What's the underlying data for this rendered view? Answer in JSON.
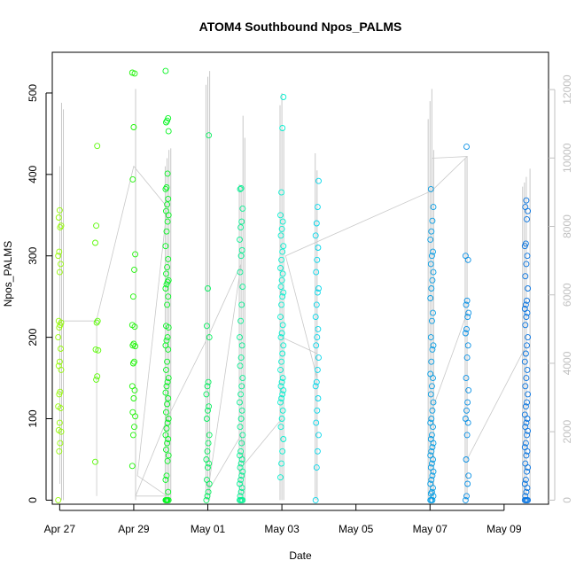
{
  "chart_data": {
    "type": "scatter",
    "title": "ATOM4 Southbound Npos_PALMS",
    "xlabel": "Date",
    "ylabel": "Npos_PALMS",
    "xlim": [
      -0.2,
      13.2
    ],
    "ylim": [
      -5,
      550
    ],
    "y_ticks": [
      "0",
      "100",
      "200",
      "300",
      "400",
      "500"
    ],
    "y_tick_values": [
      0,
      100,
      200,
      300,
      400,
      500
    ],
    "x_ticks": [
      "Apr 27",
      "Apr 29",
      "May 01",
      "May 03",
      "May 05",
      "May 07",
      "May 09"
    ],
    "x_tick_values": [
      0,
      2,
      4,
      6,
      8,
      10,
      12
    ],
    "secondary_axis": {
      "ylim": [
        -119,
        13090
      ],
      "ticks": [
        "0",
        "2000",
        "4000",
        "6000",
        "8000",
        "10000",
        "12000"
      ],
      "tick_values": [
        0,
        2000,
        4000,
        6000,
        8000,
        10000,
        12000
      ],
      "color": "#c0c0c0"
    },
    "series": [
      {
        "name": "Npos_PALMS",
        "marker": "open-circle",
        "color_scale": "time (green → cyan → blue)",
        "clusters": [
          {
            "date": 0.0,
            "values": [
              0,
              60,
              70,
              84,
              86,
              95,
              113,
              115,
              130,
              133,
              160,
              165,
              170,
              186,
              200,
              212,
              215,
              218,
              220,
              280,
              290,
              300,
              305,
              335,
              337,
              347,
              356
            ]
          },
          {
            "date": 1.0,
            "values": [
              47,
              148,
              152,
              184,
              185,
              218,
              220,
              316,
              337,
              435
            ]
          },
          {
            "date": 2.0,
            "values": [
              42,
              80,
              90,
              103,
              108,
              125,
              135,
              140,
              168,
              170,
              189,
              190,
              192,
              213,
              215,
              250,
              283,
              302,
              394,
              458,
              524,
              525
            ]
          },
          {
            "date": 2.9,
            "values": [
              0,
              0,
              0,
              0,
              0,
              0,
              10,
              25,
              30,
              48,
              55,
              62,
              70,
              75,
              80,
              88,
              95,
              100,
              108,
              118,
              125,
              132,
              140,
              145,
              150,
              160,
              170,
              185,
              190,
              196,
              200,
              212,
              214,
              240,
              250,
              260,
              265,
              268,
              270,
              278,
              286,
              296,
              312,
              330,
              342,
              350,
              355,
              363,
              370,
              382,
              384,
              401,
              453,
              464,
              466,
              469,
              527
            ]
          },
          {
            "date": 4.0,
            "values": [
              0,
              5,
              10,
              20,
              25,
              40,
              45,
              50,
              60,
              70,
              80,
              100,
              110,
              115,
              130,
              140,
              145,
              200,
              214,
              260,
              448
            ]
          },
          {
            "date": 4.9,
            "values": [
              0,
              0,
              0,
              0,
              5,
              10,
              15,
              20,
              25,
              30,
              35,
              40,
              45,
              50,
              55,
              60,
              70,
              80,
              90,
              100,
              110,
              120,
              130,
              140,
              150,
              165,
              175,
              190,
              200,
              220,
              240,
              262,
              280,
              300,
              307,
              320,
              335,
              342,
              358,
              382,
              383
            ]
          },
          {
            "date": 6.0,
            "values": [
              28,
              45,
              60,
              75,
              90,
              100,
              110,
              120,
              125,
              130,
              135,
              140,
              145,
              150,
              160,
              170,
              180,
              190,
              200,
              205,
              215,
              225,
              240,
              250,
              255,
              262,
              270,
              278,
              285,
              295,
              305,
              312,
              325,
              333,
              342,
              350,
              378,
              457,
              495
            ]
          },
          {
            "date": 6.95,
            "values": [
              0,
              40,
              60,
              80,
              95,
              110,
              125,
              140,
              145,
              160,
              175,
              190,
              200,
              210,
              225,
              240,
              255,
              260,
              280,
              295,
              310,
              325,
              340,
              360,
              392
            ]
          },
          {
            "date": 10.05,
            "values": [
              0,
              0,
              0,
              5,
              8,
              10,
              15,
              20,
              25,
              30,
              35,
              40,
              45,
              50,
              55,
              60,
              65,
              70,
              75,
              80,
              90,
              95,
              100,
              110,
              120,
              130,
              140,
              150,
              155,
              170,
              185,
              190,
              200,
              220,
              230,
              248,
              260,
              270,
              280,
              290,
              300,
              305,
              320,
              330,
              343,
              360,
              382
            ]
          },
          {
            "date": 11.0,
            "values": [
              0,
              5,
              20,
              30,
              50,
              80,
              95,
              100,
              110,
              120,
              135,
              150,
              175,
              190,
              205,
              210,
              225,
              230,
              240,
              245,
              295,
              300,
              434
            ]
          },
          {
            "date": 12.6,
            "values": [
              0,
              0,
              0,
              0,
              5,
              10,
              15,
              20,
              25,
              35,
              40,
              45,
              55,
              60,
              65,
              70,
              80,
              85,
              90,
              95,
              100,
              105,
              115,
              120,
              130,
              140,
              150,
              160,
              170,
              180,
              190,
              200,
              215,
              225,
              230,
              235,
              240,
              245,
              260,
              275,
              290,
              300,
              312,
              315,
              345,
              355,
              360,
              368
            ]
          }
        ]
      },
      {
        "name": "secondary trace (right axis)",
        "type": "line",
        "color": "#c0c0c0",
        "points_y_left_units": [
          [
            0.0,
            410
          ],
          [
            0.0,
            20
          ],
          [
            0.0,
            220
          ],
          [
            1.0,
            220
          ],
          [
            1.0,
            5
          ],
          [
            1.0,
            222
          ],
          [
            2.0,
            410
          ],
          [
            2.9,
            360
          ],
          [
            2.1,
            30
          ],
          [
            2.9,
            5
          ],
          [
            2.05,
            5
          ],
          [
            2.9,
            100
          ],
          [
            4.0,
            200
          ],
          [
            4.9,
            290
          ],
          [
            4.0,
            10
          ],
          [
            4.9,
            80
          ],
          [
            5.0,
            45
          ],
          [
            6.0,
            100
          ],
          [
            6.0,
            200
          ],
          [
            6.95,
            180
          ],
          [
            6.95,
            150
          ],
          [
            6.1,
            300
          ],
          [
            10.05,
            380
          ],
          [
            11.0,
            422
          ],
          [
            10.05,
            420
          ],
          [
            10.05,
            110
          ],
          [
            11.0,
            230
          ],
          [
            11.0,
            50
          ],
          [
            12.6,
            190
          ]
        ],
        "spikes": [
          {
            "date": 0.05,
            "top": 488
          },
          {
            "date": 0.1,
            "top": 480
          },
          {
            "date": 2.05,
            "top": 505
          },
          {
            "date": 2.85,
            "top": 410
          },
          {
            "date": 2.9,
            "top": 420
          },
          {
            "date": 2.95,
            "top": 430
          },
          {
            "date": 3.0,
            "top": 432
          },
          {
            "date": 3.95,
            "top": 510
          },
          {
            "date": 4.0,
            "top": 520
          },
          {
            "date": 4.05,
            "top": 527
          },
          {
            "date": 4.85,
            "top": 388
          },
          {
            "date": 4.9,
            "top": 387
          },
          {
            "date": 4.95,
            "top": 472
          },
          {
            "date": 5.0,
            "top": 445
          },
          {
            "date": 5.95,
            "top": 485
          },
          {
            "date": 6.0,
            "top": 500
          },
          {
            "date": 6.05,
            "top": 455
          },
          {
            "date": 6.9,
            "top": 426
          },
          {
            "date": 6.95,
            "top": 405
          },
          {
            "date": 9.95,
            "top": 468
          },
          {
            "date": 10.0,
            "top": 490
          },
          {
            "date": 10.05,
            "top": 505
          },
          {
            "date": 10.1,
            "top": 430
          },
          {
            "date": 10.95,
            "top": 420
          },
          {
            "date": 11.0,
            "top": 422
          },
          {
            "date": 12.5,
            "top": 385
          },
          {
            "date": 12.55,
            "top": 390
          },
          {
            "date": 12.6,
            "top": 397
          },
          {
            "date": 12.7,
            "top": 407
          }
        ]
      }
    ]
  }
}
